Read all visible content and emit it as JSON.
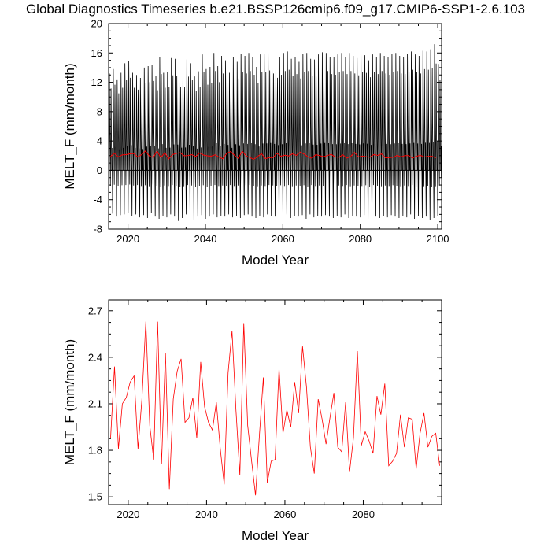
{
  "title": "Global Diagnostics Timeseries b.e21.BSSP126cmip6.f09_g17.CMIP6-SSP1-2.6.103",
  "chart_data": [
    {
      "type": "line",
      "xlabel": "Model Year",
      "ylabel": "MELT_F (mm/month)",
      "xlim": [
        2015,
        2101
      ],
      "ylim": [
        -8,
        20
      ],
      "xticks": [
        2020,
        2040,
        2060,
        2080,
        2100
      ],
      "yticks": [
        -8,
        -4,
        0,
        4,
        8,
        12,
        16,
        20
      ],
      "ytick_labels": [
        "-8",
        "-4",
        "0",
        "4",
        "8",
        "12",
        "16",
        "20"
      ],
      "zero_line": true,
      "monthly_series": {
        "color": "#000000",
        "x_start": 2015.04,
        "x_step": 0.0833,
        "monthly_cycle": [
          -6.0,
          1.5,
          13.0,
          7.0,
          2.0,
          -2.0,
          4.0,
          11.0,
          5.0,
          0.0,
          3.0,
          -1.0
        ],
        "annual_peak": [
          13.2,
          13.8,
          12.4,
          13.3,
          14.6,
          14.9,
          13.3,
          13.0,
          12.6,
          14.0,
          14.2,
          14.4,
          12.9,
          15.5,
          13.3,
          13.4,
          15.3,
          15.2,
          13.4,
          13.5,
          15.1,
          14.6,
          12.8,
          13.5,
          15.8,
          13.8,
          14.1,
          16.0,
          14.2,
          15.6,
          15.0,
          13.3,
          15.4,
          14.8,
          15.9,
          15.6,
          16.0,
          15.4,
          14.1,
          15.8,
          15.9,
          16.1,
          15.6,
          14.9,
          15.4,
          16.0,
          16.2,
          15.2,
          15.5,
          14.8,
          15.9,
          16.0,
          15.2,
          15.1,
          15.8,
          16.1,
          16.0,
          15.5,
          15.4,
          15.8,
          16.0,
          15.5,
          16.0,
          15.6,
          15.3,
          15.9,
          15.7,
          15.0,
          15.8,
          15.5,
          16.0,
          15.6,
          15.4,
          15.9,
          16.0,
          15.6,
          15.5,
          15.9,
          16.2,
          15.8,
          15.6,
          16.3,
          16.2,
          16.5,
          17.2,
          14.5
        ],
        "annual_trough": [
          -6.3,
          -5.9,
          -6.3,
          -6.1,
          -6.0,
          -5.8,
          -6.2,
          -6.0,
          -6.4,
          -6.1,
          -6.5,
          -5.8,
          -6.3,
          -6.6,
          -6.2,
          -6.4,
          -6.0,
          -6.3,
          -6.9,
          -6.5,
          -6.0,
          -6.2,
          -6.8,
          -6.3,
          -6.1,
          -6.6,
          -6.3,
          -6.0,
          -6.4,
          -6.2,
          -6.3,
          -6.0,
          -6.4,
          -6.2,
          -6.5,
          -6.1,
          -6.0,
          -6.3,
          -6.5,
          -6.2,
          -6.4,
          -6.0,
          -6.2,
          -6.3,
          -6.1,
          -6.4,
          -6.0,
          -6.5,
          -6.2,
          -6.3,
          -6.1,
          -6.6,
          -6.0,
          -6.4,
          -6.2,
          -6.3,
          -6.1,
          -6.3,
          -6.5,
          -6.2,
          -6.4,
          -6.0,
          -6.5,
          -6.2,
          -6.3,
          -6.4,
          -6.1,
          -6.6,
          -6.0,
          -6.3,
          -6.5,
          -6.2,
          -6.4,
          -6.1,
          -6.3,
          -6.5,
          -6.2,
          -6.4,
          -6.0,
          -6.6,
          -6.2,
          -6.5,
          -6.3,
          -6.8,
          -6.5,
          -6.2
        ]
      },
      "annual_series_color": "#ff0000",
      "uses_annual_from": 1
    },
    {
      "type": "line",
      "xlabel": "Model Year",
      "ylabel": "MELT_F (mm/month)",
      "xlim": [
        2015,
        2100
      ],
      "ylim": [
        1.45,
        2.77
      ],
      "xticks": [
        2020,
        2040,
        2060,
        2080
      ],
      "yticks": [
        1.5,
        1.8,
        2.1,
        2.4,
        2.7
      ],
      "ytick_labels": [
        "1.5",
        "1.8",
        "2.1",
        "2.4",
        "2.7"
      ],
      "color": "#ff0000",
      "x": [
        2015,
        2016,
        2017,
        2018,
        2019,
        2020,
        2021,
        2022,
        2023,
        2024,
        2025,
        2026,
        2027,
        2028,
        2029,
        2030,
        2031,
        2032,
        2033,
        2034,
        2035,
        2036,
        2037,
        2038,
        2039,
        2040,
        2041,
        2042,
        2043,
        2044,
        2045,
        2046,
        2047,
        2048,
        2049,
        2050,
        2051,
        2052,
        2053,
        2054,
        2055,
        2056,
        2057,
        2058,
        2059,
        2060,
        2061,
        2062,
        2063,
        2064,
        2065,
        2066,
        2067,
        2068,
        2069,
        2070,
        2071,
        2072,
        2073,
        2074,
        2075,
        2076,
        2077,
        2078,
        2079,
        2080,
        2081,
        2082,
        2083,
        2084,
        2085,
        2086,
        2087,
        2088,
        2089,
        2090,
        2091,
        2092,
        2093,
        2094,
        2095,
        2096,
        2097,
        2098,
        2099
      ],
      "values": [
        1.88,
        2.34,
        1.81,
        2.1,
        2.14,
        2.24,
        2.28,
        1.81,
        2.13,
        2.63,
        1.96,
        1.74,
        2.63,
        1.71,
        2.43,
        1.55,
        2.13,
        2.31,
        2.39,
        1.98,
        2.01,
        2.14,
        1.88,
        2.37,
        2.08,
        1.98,
        1.93,
        2.11,
        1.81,
        1.58,
        2.3,
        2.57,
        2.06,
        1.64,
        2.62,
        1.96,
        1.73,
        1.51,
        1.9,
        2.27,
        1.59,
        1.73,
        1.74,
        2.33,
        1.91,
        2.06,
        1.95,
        2.24,
        2.04,
        2.47,
        2.21,
        1.82,
        1.65,
        2.13,
        2.0,
        1.84,
        2.01,
        2.17,
        1.82,
        1.79,
        2.11,
        1.66,
        1.88,
        2.44,
        1.83,
        1.92,
        1.86,
        1.78,
        2.15,
        2.03,
        2.23,
        1.7,
        1.73,
        1.78,
        2.03,
        1.82,
        2.01,
        2.0,
        1.68,
        1.91,
        2.04,
        1.82,
        1.89,
        1.91,
        1.7
      ]
    }
  ]
}
